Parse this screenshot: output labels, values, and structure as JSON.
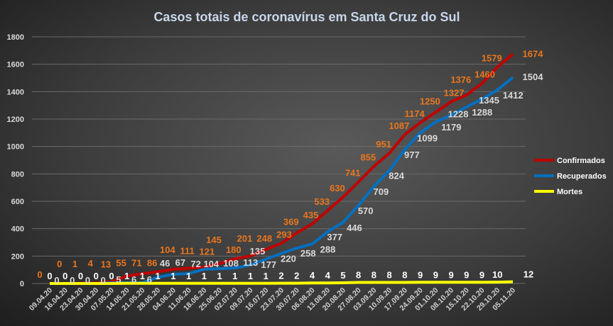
{
  "chart_data": {
    "type": "line",
    "title": "Casos totais de coronavírus  em Santa Cruz do Sul",
    "xlabel": "",
    "ylabel": "",
    "ylim": [
      0,
      1800
    ],
    "yticks": [
      0,
      200,
      400,
      600,
      800,
      1000,
      1200,
      1400,
      1600,
      1800
    ],
    "grid": true,
    "legend_position": "right",
    "x": [
      "09.04.20",
      "16.04.20",
      "23.04.20",
      "30.04.20",
      "07.05.20",
      "14.05.20",
      "21.05.20",
      "28.05.20",
      "04.06.20",
      "11.06.20",
      "18.06.20",
      "25.06.20",
      "02.07.20",
      "09.07.20",
      "16.07.20",
      "23.07.20",
      "30.07.20",
      "06.08.20",
      "13.08.20",
      "20.08.20",
      "27.08.20",
      "03.09.20",
      "10.09.20",
      "17.09.20",
      "24.09.20",
      "01.10.20",
      "08.10.20",
      "15.10.20",
      "22.10.20",
      "29.10.20",
      "05.11.20"
    ],
    "series": [
      {
        "name": "Confirmados",
        "color": "#c00000",
        "label_color": "#e8761e",
        "values": [
          0,
          0,
          1,
          4,
          13,
          55,
          71,
          86,
          104,
          111,
          121,
          145,
          180,
          201,
          248,
          293,
          369,
          435,
          533,
          630,
          741,
          855,
          951,
          1087,
          1174,
          1250,
          1327,
          1376,
          1460,
          1579,
          1674
        ]
      },
      {
        "name": "Recuperados",
        "color": "#0070c0",
        "label_color": "#d9d9d9",
        "values": [
          0,
          0,
          0,
          0,
          5,
          6,
          6,
          46,
          67,
          72,
          104,
          108,
          113,
          135,
          177,
          220,
          258,
          288,
          377,
          446,
          570,
          709,
          824,
          977,
          1099,
          1179,
          1228,
          1288,
          1345,
          1412,
          1504
        ]
      },
      {
        "name": "Mortes",
        "color": "#ffff00",
        "label_color": "#ffffff",
        "values": [
          0,
          0,
          0,
          0,
          0,
          1,
          1,
          1,
          1,
          1,
          1,
          1,
          1,
          1,
          1,
          2,
          2,
          4,
          4,
          5,
          8,
          8,
          8,
          8,
          9,
          9,
          9,
          9,
          9,
          10,
          12
        ]
      }
    ]
  }
}
